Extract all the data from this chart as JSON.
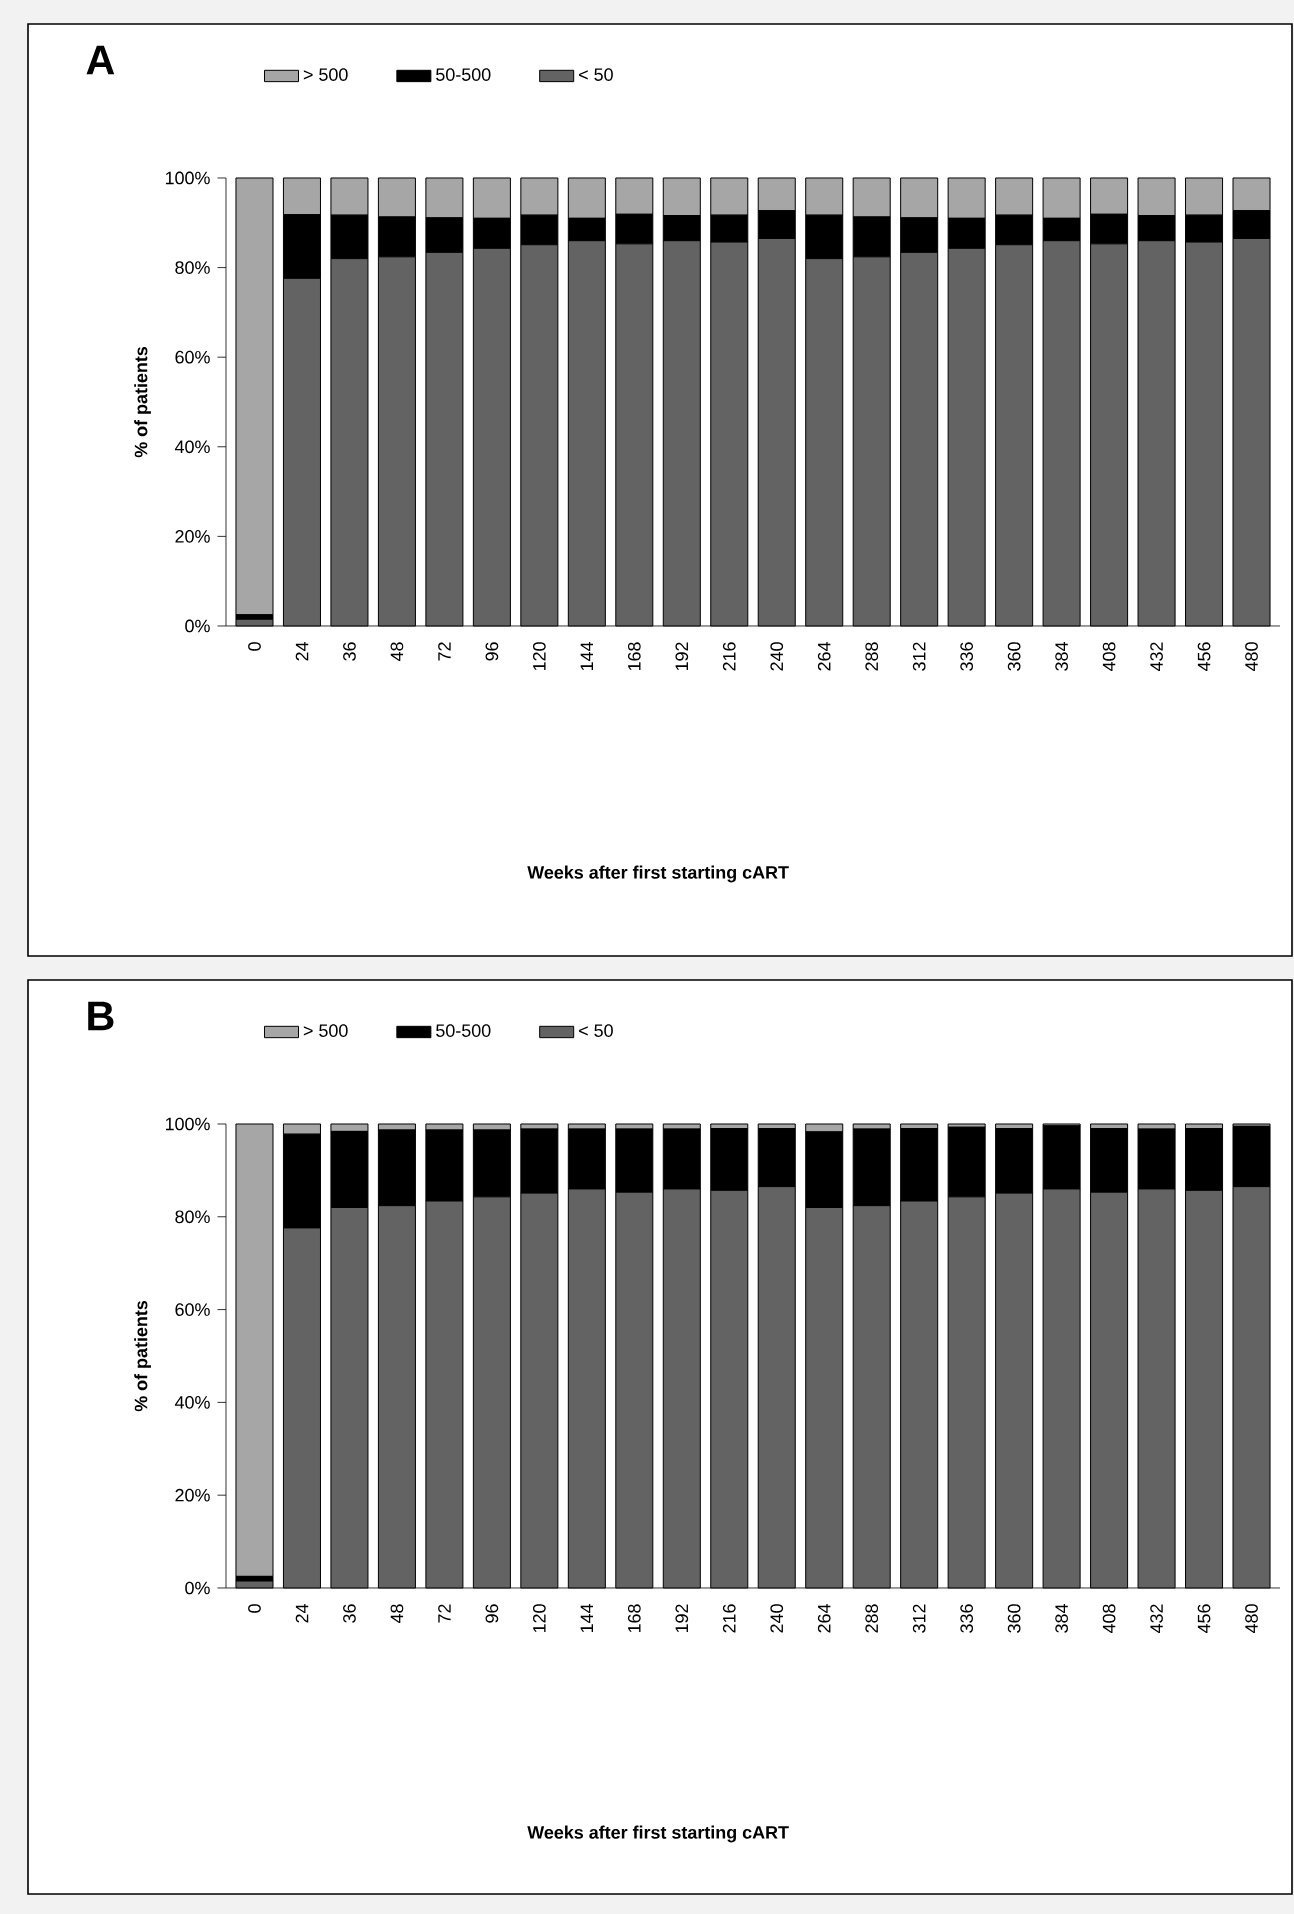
{
  "chart_data": [
    {
      "type": "bar",
      "title": "A",
      "xlabel": "Weeks after first starting cART",
      "ylabel": "% of patients",
      "categories": [
        "0",
        "24",
        "36",
        "48",
        "72",
        "96",
        "120",
        "144",
        "168",
        "192",
        "216",
        "240",
        "264",
        "288",
        "312",
        "336",
        "360",
        "384",
        "408",
        "432",
        "456",
        "480"
      ],
      "stacked": true,
      "ylim": [
        0,
        100
      ],
      "yticks": [
        {
          "value": 0,
          "label": "0%"
        },
        {
          "value": 20,
          "label": "20%"
        },
        {
          "value": 40,
          "label": "40%"
        },
        {
          "value": 60,
          "label": "60%"
        },
        {
          "value": 80,
          "label": "80%"
        },
        {
          "value": 100,
          "label": "100%"
        }
      ],
      "legend": "top left",
      "series": [
        {
          "name": "< 50",
          "color": "#636363",
          "values": [
            1.5,
            77.6,
            82.0,
            82.4,
            83.4,
            84.3,
            85.1,
            86.0,
            85.3,
            86.0,
            85.7,
            86.5,
            82.0,
            82.4,
            83.4,
            84.3,
            85.1,
            86.0,
            85.3,
            86.0,
            85.7,
            86.5
          ]
        },
        {
          "name": "50-500",
          "color": "#000000",
          "values": [
            1.0,
            14.2,
            9.7,
            8.9,
            7.7,
            6.7,
            6.6,
            5.0,
            6.6,
            5.6,
            6.0,
            6.2,
            9.7,
            8.9,
            7.7,
            6.7,
            6.6,
            5.0,
            6.6,
            5.6,
            6.0,
            6.2
          ]
        },
        {
          "name": "> 500",
          "color": "#a6a6a6",
          "values": [
            97.5,
            8.2,
            8.3,
            8.7,
            8.9,
            9.0,
            8.3,
            9.0,
            8.1,
            8.4,
            8.3,
            7.3,
            8.3,
            8.7,
            8.9,
            9.0,
            8.3,
            9.0,
            8.1,
            8.4,
            8.3,
            7.3
          ]
        }
      ]
    },
    {
      "type": "bar",
      "title": "B",
      "xlabel": "Weeks after first starting cART",
      "ylabel": "% of patients",
      "categories": [
        "0",
        "24",
        "36",
        "48",
        "72",
        "96",
        "120",
        "144",
        "168",
        "192",
        "216",
        "240",
        "264",
        "288",
        "312",
        "336",
        "360",
        "384",
        "408",
        "432",
        "456",
        "480"
      ],
      "stacked": true,
      "ylim": [
        0,
        100
      ],
      "yticks": [
        {
          "value": 0,
          "label": "0%"
        },
        {
          "value": 20,
          "label": "20%"
        },
        {
          "value": 40,
          "label": "40%"
        },
        {
          "value": 60,
          "label": "60%"
        },
        {
          "value": 80,
          "label": "80%"
        },
        {
          "value": 100,
          "label": "100%"
        }
      ],
      "legend": "top left",
      "series": [
        {
          "name": "< 50",
          "color": "#636363",
          "values": [
            1.5,
            77.6,
            82.0,
            82.4,
            83.4,
            84.3,
            85.1,
            86.0,
            85.3,
            86.0,
            85.7,
            86.5,
            82.0,
            82.4,
            83.4,
            84.3,
            85.1,
            86.0,
            85.3,
            86.0,
            85.7,
            86.5
          ]
        },
        {
          "name": "50-500",
          "color": "#000000",
          "values": [
            1.0,
            20.2,
            16.4,
            16.3,
            15.3,
            14.4,
            13.8,
            12.9,
            13.6,
            12.9,
            13.3,
            12.5,
            16.3,
            16.5,
            15.6,
            15.0,
            13.9,
            13.6,
            13.7,
            12.9,
            13.3,
            13.0
          ]
        },
        {
          "name": "> 500",
          "color": "#a6a6a6",
          "values": [
            97.5,
            2.2,
            1.6,
            1.3,
            1.3,
            1.3,
            1.1,
            1.1,
            1.1,
            1.1,
            1.0,
            1.0,
            1.7,
            1.1,
            1.0,
            0.7,
            1.0,
            0.4,
            1.0,
            1.1,
            1.0,
            0.5
          ]
        }
      ]
    }
  ]
}
